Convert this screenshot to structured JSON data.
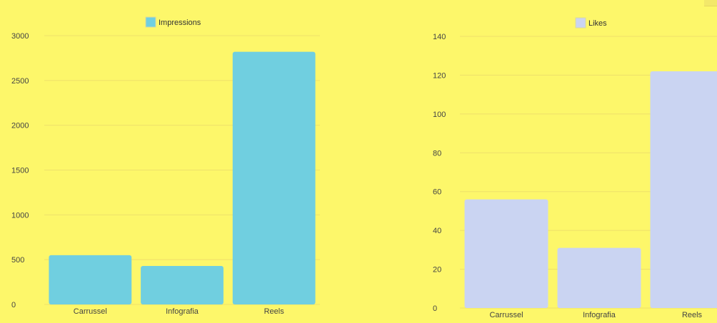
{
  "chart_data": [
    {
      "type": "bar",
      "categories": [
        "Carrussel",
        "Infografia",
        "Reels"
      ],
      "series": [
        {
          "name": "Impressions",
          "values": [
            550,
            430,
            2820
          ]
        }
      ],
      "ylim": [
        0,
        3000
      ],
      "yticks": [
        0,
        500,
        1000,
        1500,
        2000,
        2500,
        3000
      ],
      "grid": true,
      "legend_position": "top-center",
      "color": "#70cfe0"
    },
    {
      "type": "bar",
      "categories": [
        "Carrussel",
        "Infografia",
        "Reels"
      ],
      "series": [
        {
          "name": "Likes",
          "values": [
            56,
            31,
            122
          ]
        }
      ],
      "ylim": [
        0,
        140
      ],
      "yticks": [
        0,
        20,
        40,
        60,
        80,
        100,
        120,
        140
      ],
      "grid": true,
      "legend_position": "top-center",
      "color": "#cad4f2"
    }
  ],
  "colors": {
    "background": "#fdf76a",
    "impressions": "#70cfe0",
    "likes": "#cad4f2"
  }
}
